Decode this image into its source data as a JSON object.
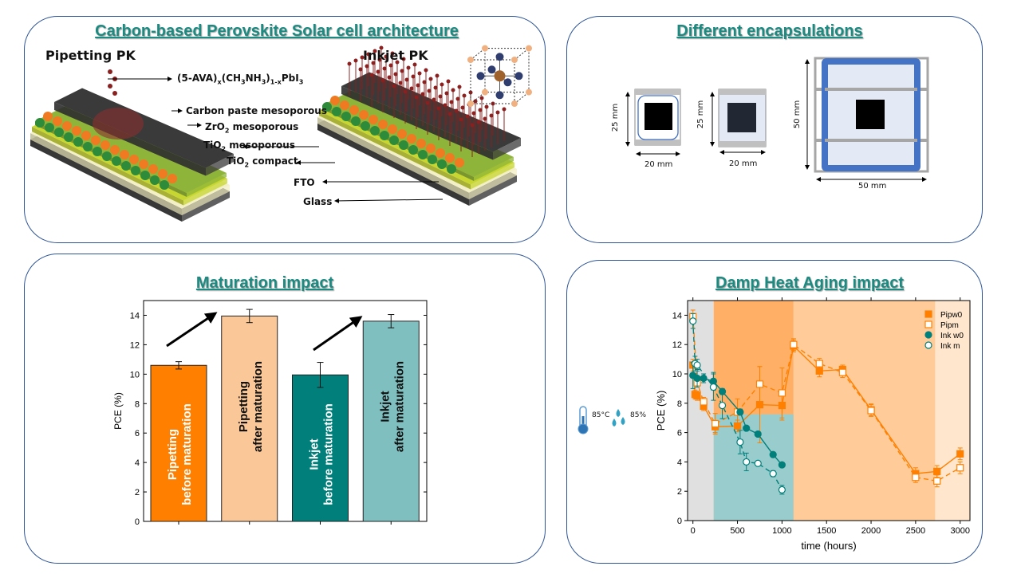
{
  "panels": {
    "architecture": {
      "title": "Carbon-based Perovskite Solar cell architecture",
      "pipetting_label": "Pipetting PK",
      "inkjet_label": "Inkjet PK",
      "layers": [
        [
          {
            "t": "(5-AVA)"
          },
          {
            "s": "x"
          },
          {
            "t": "(CH"
          },
          {
            "s": "3"
          },
          {
            "t": "NH"
          },
          {
            "s": "3"
          },
          {
            "t": ")"
          },
          {
            "s": "1-x"
          },
          {
            "t": "PbI"
          },
          {
            "s": "3"
          }
        ],
        [
          {
            "t": "Carbon paste mesoporous"
          }
        ],
        [
          {
            "t": "ZrO"
          },
          {
            "s": "2"
          },
          {
            "t": " mesoporous"
          }
        ],
        [
          {
            "t": "TiO"
          },
          {
            "s": "2"
          },
          {
            "t": " mesoporous"
          }
        ],
        [
          {
            "t": "TiO"
          },
          {
            "s": "2"
          },
          {
            "t": " compact"
          }
        ],
        [
          {
            "t": "FTO"
          }
        ],
        [
          {
            "t": "Glass"
          }
        ]
      ]
    },
    "encapsulation": {
      "title": "Different encapsulations",
      "cells": [
        {
          "height": "25 mm",
          "width": "20 mm"
        },
        {
          "height": "25 mm",
          "width": "20 mm"
        },
        {
          "height": "50 mm",
          "width": "50 mm"
        }
      ],
      "colors": {
        "seal": "#4472C4",
        "glass": "#E4E9F6",
        "frame": "#A6A6A6"
      }
    },
    "maturation": {
      "title": "Maturation impact"
    },
    "damp_heat": {
      "title": "Damp Heat Aging impact",
      "conditions": {
        "temperature": "85°C",
        "humidity": "85%"
      }
    }
  },
  "chart_data": [
    {
      "type": "bar",
      "title": "Maturation impact",
      "ylabel": "PCE (%)",
      "xlabel": "",
      "ylim": [
        0,
        15
      ],
      "yticks": [
        0,
        2,
        4,
        6,
        8,
        10,
        12,
        14
      ],
      "categories": [
        {
          "line1": "Pipetting",
          "line2": "before maturation",
          "color": "#FF8000",
          "text_color": "#FFFFFF"
        },
        {
          "line1": "Pipetting",
          "line2": "after maturation",
          "color": "#FAC898",
          "text_color": "#111111"
        },
        {
          "line1": "Inkjet",
          "line2": "before maturation",
          "color": "#007F7B",
          "text_color": "#FFFFFF"
        },
        {
          "line1": "Inkjet",
          "line2": "after maturation",
          "color": "#80BFBF",
          "text_color": "#111111"
        }
      ],
      "values": [
        10.6,
        13.95,
        9.95,
        13.6
      ],
      "errors": [
        0.25,
        0.45,
        0.85,
        0.45
      ],
      "annotations": [
        "arrow from Pipetting before to after maturation",
        "arrow from Inkjet before to after maturation"
      ]
    },
    {
      "type": "line",
      "title": "Damp Heat Aging impact",
      "xlabel": "time (hours)",
      "ylabel": "PCE (%)",
      "xlim": [
        -60,
        3110
      ],
      "ylim": [
        0,
        15
      ],
      "xticks": [
        0,
        500,
        1000,
        1500,
        2000,
        2500,
        3000
      ],
      "yticks": [
        0,
        2,
        4,
        6,
        8,
        10,
        12,
        14
      ],
      "legend_position": "top-right",
      "regions": [
        {
          "x": [
            -60,
            233
          ],
          "y": [
            0,
            15
          ],
          "color": "#E0E0E0"
        },
        {
          "x": [
            233,
            1130
          ],
          "y": [
            0,
            15
          ],
          "color": "#FFB066"
        },
        {
          "x": [
            233,
            1130
          ],
          "y": [
            0,
            7.25
          ],
          "color": "#99CCCC"
        },
        {
          "x": [
            1130,
            2720
          ],
          "y": [
            0,
            15
          ],
          "color": "#FFCC99"
        },
        {
          "x": [
            2720,
            3110
          ],
          "y": [
            0,
            15
          ],
          "color": "#FFE6CC"
        }
      ],
      "series": [
        {
          "name": "Pipw0",
          "color": "#FF8000",
          "marker": "square",
          "filled": true,
          "dashed": false,
          "x": [
            0,
            24,
            48,
            120,
            250,
            500,
            750,
            1000,
            1130,
            1420,
            1680,
            2000,
            2500,
            2740,
            3000
          ],
          "y": [
            10.6,
            8.6,
            8.5,
            7.8,
            6.4,
            6.45,
            7.9,
            7.85,
            11.9,
            10.2,
            10.3,
            7.55,
            3.2,
            3.35,
            4.55
          ],
          "err": [
            0.4,
            0.3,
            0.3,
            0.3,
            0.4,
            0.4,
            2.6,
            1.0,
            0.4,
            0.4,
            0.3,
            0.4,
            0.4,
            0.4,
            0.4
          ]
        },
        {
          "name": "Pipm",
          "color": "#FF8000",
          "marker": "square",
          "filled": false,
          "dashed": true,
          "x": [
            0,
            48,
            120,
            250,
            500,
            750,
            1000,
            1130,
            1420,
            1680,
            2000,
            2500,
            2740,
            3000
          ],
          "y": [
            13.9,
            9.4,
            8.1,
            6.6,
            7.4,
            9.3,
            8.7,
            12.0,
            10.7,
            10.1,
            7.5,
            2.95,
            2.7,
            3.6
          ],
          "err": [
            0.45,
            0.3,
            0.3,
            0.7,
            0.9,
            1.2,
            1.7,
            0.4,
            0.35,
            0.35,
            0.4,
            0.35,
            0.4,
            0.4
          ]
        },
        {
          "name": "Ink w0",
          "color": "#007F7B",
          "marker": "circle",
          "filled": true,
          "dashed": false,
          "x": [
            0,
            48,
            120,
            230,
            330,
            530,
            600,
            730,
            900,
            1000
          ],
          "y": [
            9.9,
            9.7,
            9.7,
            9.5,
            8.8,
            7.4,
            6.3,
            5.9,
            4.5,
            3.8
          ],
          "err": [
            0.9,
            0.6,
            0.3,
            0.6,
            0.2,
            0.2,
            0.1,
            0.1,
            0.1,
            0.1
          ]
        },
        {
          "name": "Ink m",
          "color": "#007F7B",
          "marker": "circle",
          "filled": false,
          "dashed": true,
          "x": [
            0,
            24,
            48,
            230,
            330,
            530,
            600,
            730,
            900,
            1000
          ],
          "y": [
            13.6,
            10.7,
            10.6,
            9.1,
            7.85,
            5.35,
            4.0,
            3.9,
            3.2,
            2.1
          ],
          "err": [
            0.5,
            0.5,
            0.4,
            0.9,
            0.9,
            0.8,
            0.6,
            0.1,
            0.2,
            0.3
          ]
        }
      ]
    }
  ]
}
